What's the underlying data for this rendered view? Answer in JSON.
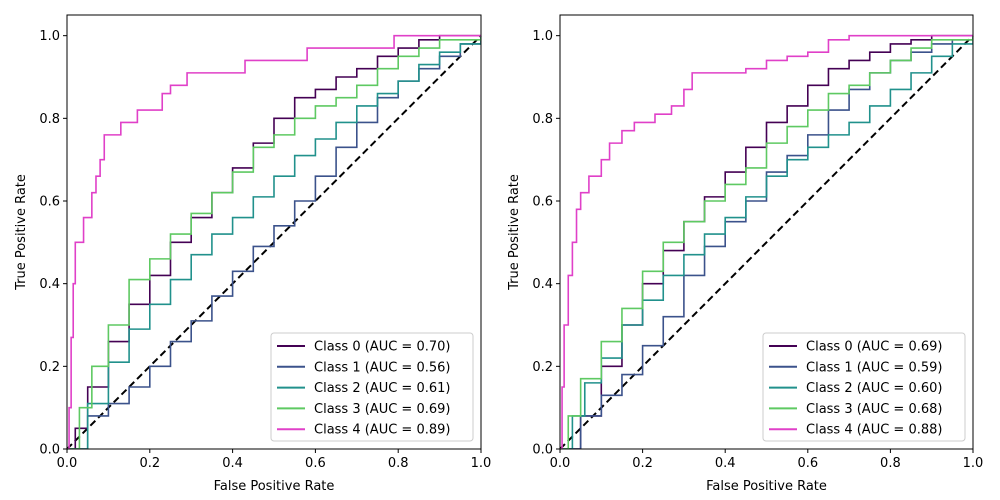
{
  "chart_data": [
    {
      "type": "line",
      "subtype": "roc",
      "xlabel": "False Positive Rate",
      "ylabel": "True Positive Rate",
      "xlim": [
        0,
        1.0
      ],
      "ylim": [
        0,
        1.05
      ],
      "xticks": [
        "0.0",
        "0.2",
        "0.4",
        "0.6",
        "0.8",
        "1.0"
      ],
      "yticks": [
        "0.0",
        "0.2",
        "0.4",
        "0.6",
        "0.8",
        "1.0"
      ],
      "legend_position": "lower-right",
      "diagonal": {
        "style": "dashed",
        "color": "#000000"
      },
      "series": [
        {
          "name": "Class 0 (AUC = 0.70)",
          "color": "#440154",
          "points": [
            [
              0,
              0
            ],
            [
              0.02,
              0.05
            ],
            [
              0.05,
              0.15
            ],
            [
              0.1,
              0.26
            ],
            [
              0.15,
              0.35
            ],
            [
              0.2,
              0.42
            ],
            [
              0.25,
              0.5
            ],
            [
              0.3,
              0.56
            ],
            [
              0.35,
              0.62
            ],
            [
              0.4,
              0.68
            ],
            [
              0.45,
              0.74
            ],
            [
              0.5,
              0.8
            ],
            [
              0.55,
              0.85
            ],
            [
              0.6,
              0.87
            ],
            [
              0.65,
              0.9
            ],
            [
              0.7,
              0.92
            ],
            [
              0.75,
              0.95
            ],
            [
              0.8,
              0.97
            ],
            [
              0.85,
              0.99
            ],
            [
              0.9,
              1.0
            ],
            [
              1,
              1
            ]
          ]
        },
        {
          "name": "Class 1 (AUC = 0.56)",
          "color": "#3b528b",
          "points": [
            [
              0,
              0
            ],
            [
              0.05,
              0.08
            ],
            [
              0.1,
              0.11
            ],
            [
              0.15,
              0.15
            ],
            [
              0.2,
              0.2
            ],
            [
              0.25,
              0.26
            ],
            [
              0.3,
              0.31
            ],
            [
              0.35,
              0.37
            ],
            [
              0.4,
              0.43
            ],
            [
              0.45,
              0.49
            ],
            [
              0.5,
              0.54
            ],
            [
              0.55,
              0.6
            ],
            [
              0.6,
              0.66
            ],
            [
              0.65,
              0.73
            ],
            [
              0.7,
              0.79
            ],
            [
              0.75,
              0.85
            ],
            [
              0.8,
              0.89
            ],
            [
              0.85,
              0.92
            ],
            [
              0.9,
              0.95
            ],
            [
              0.95,
              0.98
            ],
            [
              1,
              1
            ]
          ]
        },
        {
          "name": "Class 2 (AUC = 0.61)",
          "color": "#21918c",
          "points": [
            [
              0,
              0
            ],
            [
              0.05,
              0.11
            ],
            [
              0.1,
              0.21
            ],
            [
              0.15,
              0.29
            ],
            [
              0.2,
              0.35
            ],
            [
              0.25,
              0.41
            ],
            [
              0.3,
              0.47
            ],
            [
              0.35,
              0.52
            ],
            [
              0.4,
              0.56
            ],
            [
              0.45,
              0.61
            ],
            [
              0.5,
              0.66
            ],
            [
              0.55,
              0.71
            ],
            [
              0.6,
              0.75
            ],
            [
              0.65,
              0.79
            ],
            [
              0.7,
              0.83
            ],
            [
              0.75,
              0.86
            ],
            [
              0.8,
              0.89
            ],
            [
              0.85,
              0.93
            ],
            [
              0.9,
              0.96
            ],
            [
              0.95,
              0.98
            ],
            [
              1,
              1
            ]
          ]
        },
        {
          "name": "Class 3 (AUC = 0.69)",
          "color": "#5ec962",
          "points": [
            [
              0,
              0
            ],
            [
              0.03,
              0.1
            ],
            [
              0.06,
              0.2
            ],
            [
              0.1,
              0.3
            ],
            [
              0.15,
              0.41
            ],
            [
              0.2,
              0.46
            ],
            [
              0.25,
              0.52
            ],
            [
              0.3,
              0.57
            ],
            [
              0.35,
              0.62
            ],
            [
              0.4,
              0.67
            ],
            [
              0.45,
              0.73
            ],
            [
              0.5,
              0.76
            ],
            [
              0.55,
              0.8
            ],
            [
              0.6,
              0.83
            ],
            [
              0.65,
              0.85
            ],
            [
              0.7,
              0.88
            ],
            [
              0.75,
              0.92
            ],
            [
              0.8,
              0.95
            ],
            [
              0.85,
              0.97
            ],
            [
              0.9,
              0.99
            ],
            [
              1,
              1
            ]
          ]
        },
        {
          "name": "Class 4 (AUC = 0.89)",
          "color": "#e040c8",
          "points": [
            [
              0,
              0
            ],
            [
              0.005,
              0.1
            ],
            [
              0.01,
              0.27
            ],
            [
              0.015,
              0.4
            ],
            [
              0.02,
              0.5
            ],
            [
              0.04,
              0.56
            ],
            [
              0.06,
              0.62
            ],
            [
              0.07,
              0.66
            ],
            [
              0.08,
              0.7
            ],
            [
              0.09,
              0.76
            ],
            [
              0.13,
              0.79
            ],
            [
              0.17,
              0.82
            ],
            [
              0.23,
              0.86
            ],
            [
              0.25,
              0.88
            ],
            [
              0.29,
              0.91
            ],
            [
              0.43,
              0.94
            ],
            [
              0.58,
              0.97
            ],
            [
              0.79,
              1.0
            ],
            [
              1,
              1
            ]
          ]
        }
      ],
      "legend": [
        {
          "label": "Class 0 (AUC = 0.70)",
          "color": "#440154"
        },
        {
          "label": "Class 1 (AUC = 0.56)",
          "color": "#3b528b"
        },
        {
          "label": "Class 2 (AUC = 0.61)",
          "color": "#21918c"
        },
        {
          "label": "Class 3 (AUC = 0.69)",
          "color": "#5ec962"
        },
        {
          "label": "Class 4 (AUC = 0.89)",
          "color": "#e040c8"
        }
      ]
    },
    {
      "type": "line",
      "subtype": "roc",
      "xlabel": "False Positive Rate",
      "ylabel": "True Positive Rate",
      "xlim": [
        0,
        1.0
      ],
      "ylim": [
        0,
        1.05
      ],
      "xticks": [
        "0.0",
        "0.2",
        "0.4",
        "0.6",
        "0.8",
        "1.0"
      ],
      "yticks": [
        "0.0",
        "0.2",
        "0.4",
        "0.6",
        "0.8",
        "1.0"
      ],
      "legend_position": "lower-right",
      "diagonal": {
        "style": "dashed",
        "color": "#000000"
      },
      "series": [
        {
          "name": "Class 0 (AUC = 0.69)",
          "color": "#440154",
          "points": [
            [
              0,
              0
            ],
            [
              0.05,
              0.08
            ],
            [
              0.1,
              0.2
            ],
            [
              0.15,
              0.3
            ],
            [
              0.2,
              0.4
            ],
            [
              0.25,
              0.48
            ],
            [
              0.3,
              0.55
            ],
            [
              0.35,
              0.61
            ],
            [
              0.4,
              0.67
            ],
            [
              0.45,
              0.73
            ],
            [
              0.5,
              0.79
            ],
            [
              0.55,
              0.83
            ],
            [
              0.6,
              0.88
            ],
            [
              0.65,
              0.92
            ],
            [
              0.7,
              0.94
            ],
            [
              0.75,
              0.96
            ],
            [
              0.8,
              0.98
            ],
            [
              0.85,
              0.99
            ],
            [
              0.9,
              1.0
            ],
            [
              1,
              1
            ]
          ]
        },
        {
          "name": "Class 1 (AUC = 0.59)",
          "color": "#3b528b",
          "points": [
            [
              0,
              0
            ],
            [
              0.05,
              0.08
            ],
            [
              0.1,
              0.13
            ],
            [
              0.15,
              0.18
            ],
            [
              0.2,
              0.25
            ],
            [
              0.25,
              0.32
            ],
            [
              0.3,
              0.42
            ],
            [
              0.35,
              0.49
            ],
            [
              0.4,
              0.55
            ],
            [
              0.45,
              0.6
            ],
            [
              0.5,
              0.67
            ],
            [
              0.55,
              0.71
            ],
            [
              0.6,
              0.76
            ],
            [
              0.65,
              0.82
            ],
            [
              0.7,
              0.87
            ],
            [
              0.75,
              0.91
            ],
            [
              0.8,
              0.94
            ],
            [
              0.85,
              0.96
            ],
            [
              0.9,
              0.98
            ],
            [
              0.95,
              0.99
            ],
            [
              1,
              1
            ]
          ]
        },
        {
          "name": "Class 2 (AUC = 0.60)",
          "color": "#21918c",
          "points": [
            [
              0,
              0
            ],
            [
              0.03,
              0.08
            ],
            [
              0.06,
              0.16
            ],
            [
              0.1,
              0.22
            ],
            [
              0.15,
              0.3
            ],
            [
              0.2,
              0.36
            ],
            [
              0.25,
              0.42
            ],
            [
              0.3,
              0.47
            ],
            [
              0.35,
              0.52
            ],
            [
              0.4,
              0.56
            ],
            [
              0.45,
              0.61
            ],
            [
              0.5,
              0.66
            ],
            [
              0.55,
              0.7
            ],
            [
              0.6,
              0.73
            ],
            [
              0.65,
              0.76
            ],
            [
              0.7,
              0.79
            ],
            [
              0.75,
              0.83
            ],
            [
              0.8,
              0.87
            ],
            [
              0.85,
              0.91
            ],
            [
              0.9,
              0.95
            ],
            [
              0.95,
              0.98
            ],
            [
              1,
              1
            ]
          ]
        },
        {
          "name": "Class 3 (AUC = 0.68)",
          "color": "#5ec962",
          "points": [
            [
              0,
              0
            ],
            [
              0.02,
              0.08
            ],
            [
              0.05,
              0.17
            ],
            [
              0.1,
              0.26
            ],
            [
              0.15,
              0.34
            ],
            [
              0.2,
              0.43
            ],
            [
              0.25,
              0.5
            ],
            [
              0.3,
              0.55
            ],
            [
              0.35,
              0.6
            ],
            [
              0.4,
              0.64
            ],
            [
              0.45,
              0.68
            ],
            [
              0.5,
              0.74
            ],
            [
              0.55,
              0.78
            ],
            [
              0.6,
              0.82
            ],
            [
              0.65,
              0.86
            ],
            [
              0.7,
              0.88
            ],
            [
              0.75,
              0.91
            ],
            [
              0.8,
              0.94
            ],
            [
              0.85,
              0.97
            ],
            [
              0.9,
              0.99
            ],
            [
              1,
              1
            ]
          ]
        },
        {
          "name": "Class 4 (AUC = 0.88)",
          "color": "#e040c8",
          "points": [
            [
              0,
              0
            ],
            [
              0.005,
              0.15
            ],
            [
              0.01,
              0.3
            ],
            [
              0.02,
              0.42
            ],
            [
              0.03,
              0.5
            ],
            [
              0.04,
              0.58
            ],
            [
              0.05,
              0.62
            ],
            [
              0.07,
              0.66
            ],
            [
              0.1,
              0.7
            ],
            [
              0.12,
              0.74
            ],
            [
              0.15,
              0.77
            ],
            [
              0.18,
              0.79
            ],
            [
              0.23,
              0.81
            ],
            [
              0.27,
              0.83
            ],
            [
              0.3,
              0.87
            ],
            [
              0.32,
              0.91
            ],
            [
              0.45,
              0.92
            ],
            [
              0.5,
              0.94
            ],
            [
              0.55,
              0.95
            ],
            [
              0.6,
              0.96
            ],
            [
              0.65,
              0.99
            ],
            [
              0.7,
              1.0
            ],
            [
              1,
              1
            ]
          ]
        }
      ],
      "legend": [
        {
          "label": "Class 0 (AUC = 0.69)",
          "color": "#440154"
        },
        {
          "label": "Class 1 (AUC = 0.59)",
          "color": "#3b528b"
        },
        {
          "label": "Class 2 (AUC = 0.60)",
          "color": "#21918c"
        },
        {
          "label": "Class 3 (AUC = 0.68)",
          "color": "#5ec962"
        },
        {
          "label": "Class 4 (AUC = 0.88)",
          "color": "#e040c8"
        }
      ]
    }
  ]
}
